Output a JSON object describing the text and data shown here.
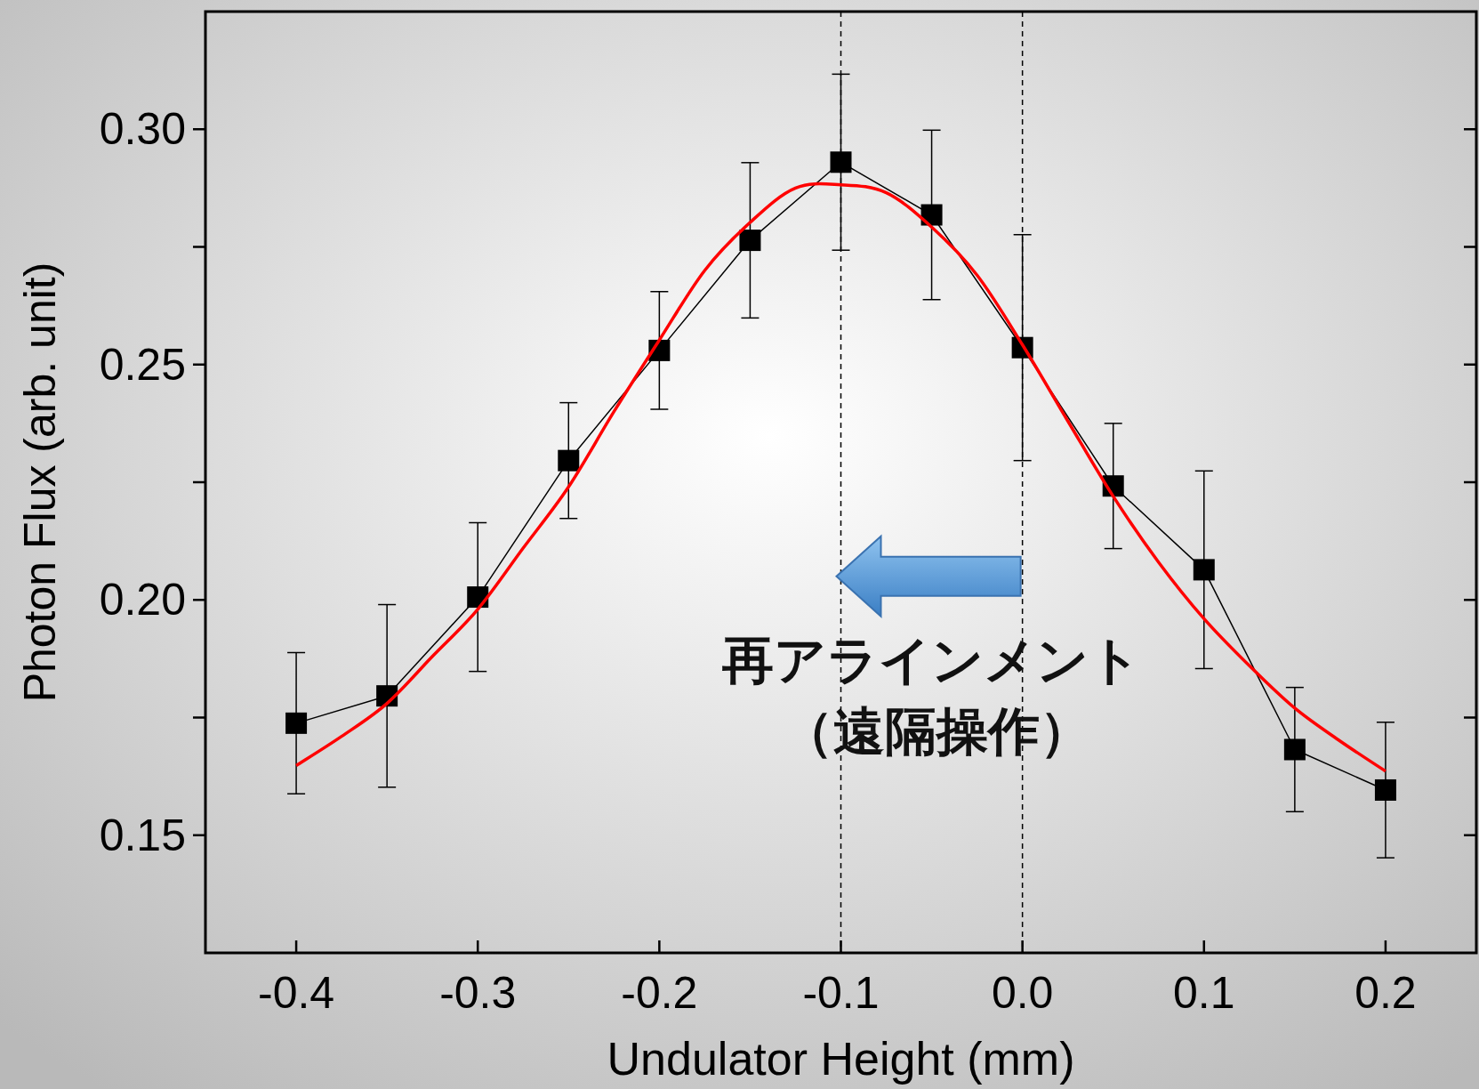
{
  "chart_data": {
    "type": "line",
    "xlabel": "Undulator Height (mm)",
    "ylabel": "Photon Flux (arb. unit)",
    "xlim": [
      -0.45,
      0.25
    ],
    "ylim": [
      0.125,
      0.325
    ],
    "xticks": [
      {
        "value": -0.4,
        "label": "-0.4"
      },
      {
        "value": -0.3,
        "label": "-0.3"
      },
      {
        "value": -0.2,
        "label": "-0.2"
      },
      {
        "value": -0.1,
        "label": "-0.1"
      },
      {
        "value": 0,
        "label": "0.0"
      },
      {
        "value": 0.1,
        "label": "0.1"
      },
      {
        "value": 0.2,
        "label": "0.2"
      }
    ],
    "yticks": [
      {
        "value": 0.15,
        "label": "0.15"
      },
      {
        "value": 0.175,
        "label": null
      },
      {
        "value": 0.2,
        "label": "0.20"
      },
      {
        "value": 0.225,
        "label": null
      },
      {
        "value": 0.25,
        "label": "0.25"
      },
      {
        "value": 0.275,
        "label": null
      },
      {
        "value": 0.3,
        "label": "0.30"
      }
    ],
    "grid": false,
    "series": [
      {
        "color": "#000000",
        "marker": "square",
        "line_style": "solid",
        "x": [
          -0.4,
          -0.35,
          -0.3,
          -0.25,
          -0.2,
          -0.15,
          -0.1,
          -0.05,
          0.0,
          0.05,
          0.1,
          0.15,
          0.2
        ],
        "values": [
          0.1738,
          0.1796,
          0.2006,
          0.2296,
          0.253,
          0.2764,
          0.293,
          0.2818,
          0.2536,
          0.2242,
          0.2064,
          0.1682,
          0.1596
        ],
        "errors": [
          0.015,
          0.0194,
          0.0158,
          0.0123,
          0.0125,
          0.0165,
          0.0187,
          0.018,
          0.024,
          0.0133,
          0.021,
          0.0132,
          0.0144
        ]
      },
      {
        "color": "#ff0000",
        "marker": "none",
        "line_style": "solid",
        "x": [
          -0.4,
          -0.375,
          -0.35,
          -0.325,
          -0.3,
          -0.275,
          -0.25,
          -0.225,
          -0.2,
          -0.175,
          -0.15,
          -0.125,
          -0.1,
          -0.075,
          -0.05,
          -0.025,
          0.0,
          0.025,
          0.05,
          0.075,
          0.1,
          0.125,
          0.15,
          0.175,
          0.2
        ],
        "values": [
          0.1648,
          0.171,
          0.178,
          0.188,
          0.198,
          0.211,
          0.224,
          0.24,
          0.2552,
          0.27,
          0.2802,
          0.2875,
          0.2882,
          0.2865,
          0.2792,
          0.269,
          0.2542,
          0.238,
          0.222,
          0.208,
          0.196,
          0.186,
          0.177,
          0.17,
          0.1636
        ]
      }
    ],
    "ref_lines": [
      {
        "axis": "x",
        "value": -0.1,
        "color": "#000000",
        "line_style": "dashed"
      },
      {
        "axis": "x",
        "value": 0.0,
        "color": "#000000",
        "line_style": "dashed"
      }
    ],
    "annotations": [
      "再アラインメント",
      "（遠隔操作）"
    ]
  }
}
